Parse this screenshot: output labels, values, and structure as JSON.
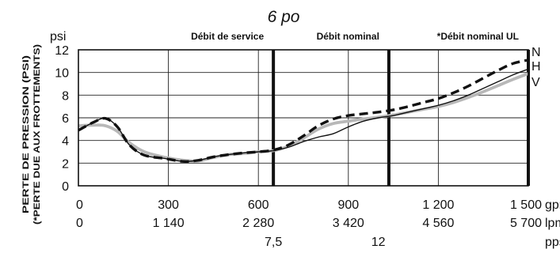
{
  "chart_data": {
    "type": "line",
    "title": "6 po",
    "ylabel_unit": "psi",
    "ylabel_lines": [
      "PERTE DE PRESSION (PSI)",
      "(*PERTE DUE AUX FROTTEMENTS)"
    ],
    "xlim": [
      0,
      1500
    ],
    "ylim": [
      0,
      12
    ],
    "grid": true,
    "y_ticks": [
      0,
      2,
      4,
      6,
      8,
      10,
      12
    ],
    "x_tick_rows": [
      {
        "unit": "gpm",
        "ticks": [
          {
            "x": 0,
            "label": "0"
          },
          {
            "x": 300,
            "label": "300"
          },
          {
            "x": 600,
            "label": "600"
          },
          {
            "x": 900,
            "label": "900"
          },
          {
            "x": 1200,
            "label": "1 200"
          },
          {
            "x": 1500,
            "label": "1 500"
          }
        ]
      },
      {
        "unit": "lpm",
        "ticks": [
          {
            "x": 0,
            "label": "0"
          },
          {
            "x": 300,
            "label": "1 140"
          },
          {
            "x": 600,
            "label": "2 280"
          },
          {
            "x": 900,
            "label": "3 420"
          },
          {
            "x": 1200,
            "label": "4 560"
          },
          {
            "x": 1500,
            "label": "5 700"
          }
        ]
      },
      {
        "unit": "pps",
        "ticks": [
          {
            "x": 650,
            "label": "7,5"
          },
          {
            "x": 1000,
            "label": "12"
          }
        ]
      }
    ],
    "reference_lines": [
      {
        "x": 650,
        "label": "Débit de service"
      },
      {
        "x": 1035,
        "label": "Débit nominal"
      },
      {
        "x": 1500,
        "label": "*Débit nominal UL"
      }
    ],
    "series": [
      {
        "name": "N",
        "color": "#111111",
        "style": "dashed",
        "x": [
          0,
          50,
          90,
          130,
          170,
          220,
          290,
          350,
          400,
          450,
          500,
          550,
          600,
          650,
          700,
          750,
          800,
          850,
          900,
          950,
          1000,
          1050,
          1100,
          1150,
          1200,
          1250,
          1300,
          1350,
          1400,
          1450,
          1500
        ],
        "y": [
          4.9,
          5.6,
          5.95,
          5.2,
          3.6,
          2.7,
          2.4,
          2.15,
          2.25,
          2.55,
          2.75,
          2.9,
          3.0,
          3.15,
          3.6,
          4.4,
          5.3,
          5.9,
          6.2,
          6.35,
          6.5,
          6.7,
          7.0,
          7.35,
          7.7,
          8.2,
          8.8,
          9.5,
          10.2,
          10.8,
          11.1
        ]
      },
      {
        "name": "H",
        "color": "#111111",
        "style": "solid",
        "x": [
          0,
          50,
          90,
          130,
          170,
          220,
          290,
          350,
          400,
          450,
          500,
          550,
          600,
          650,
          700,
          750,
          800,
          850,
          900,
          950,
          1000,
          1050,
          1100,
          1150,
          1200,
          1250,
          1300,
          1350,
          1400,
          1450,
          1500
        ],
        "y": [
          4.9,
          5.6,
          5.95,
          5.2,
          3.6,
          2.7,
          2.4,
          2.15,
          2.25,
          2.55,
          2.75,
          2.9,
          3.0,
          3.1,
          3.4,
          3.9,
          4.3,
          4.6,
          5.2,
          5.7,
          6.0,
          6.2,
          6.5,
          6.8,
          7.1,
          7.5,
          8.0,
          8.6,
          9.2,
          9.8,
          10.3
        ]
      },
      {
        "name": "V",
        "color": "#b8b8b8",
        "style": "solid",
        "x": [
          0,
          50,
          90,
          130,
          170,
          220,
          290,
          350,
          400,
          450,
          500,
          550,
          600,
          650,
          700,
          750,
          800,
          850,
          900,
          950,
          1000,
          1050,
          1100,
          1150,
          1200,
          1250,
          1300,
          1350,
          1400,
          1450,
          1500
        ],
        "y": [
          5.3,
          5.35,
          5.3,
          4.8,
          3.8,
          3.0,
          2.5,
          2.25,
          2.2,
          2.5,
          2.75,
          2.85,
          3.0,
          3.1,
          3.5,
          4.2,
          5.0,
          5.5,
          5.7,
          5.9,
          6.05,
          6.25,
          6.5,
          6.75,
          7.0,
          7.35,
          7.8,
          8.3,
          8.85,
          9.4,
          9.9
        ]
      }
    ]
  }
}
